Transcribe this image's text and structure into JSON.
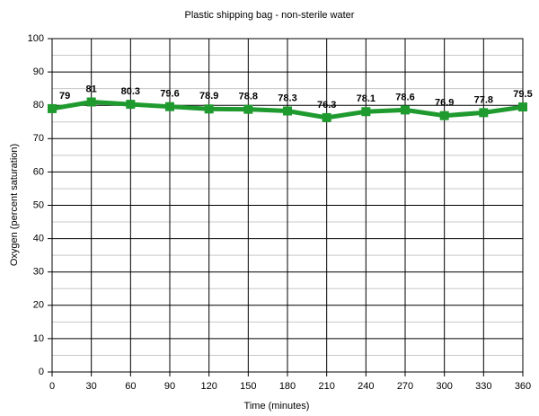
{
  "chart_data": {
    "type": "line",
    "title": "Plastic shipping bag -  non-sterile water",
    "x_label": "Time  (minutes)",
    "y_label": "Oxygen (percent saturation)",
    "x": [
      0,
      30,
      60,
      90,
      120,
      150,
      180,
      210,
      240,
      270,
      300,
      330,
      360
    ],
    "series": [
      {
        "name": "Oxygen",
        "color": "#1e9a2e",
        "values": [
          79,
          81,
          80.3,
          79.6,
          78.9,
          78.8,
          78.3,
          76.3,
          78.1,
          78.6,
          76.9,
          77.8,
          79.5
        ]
      }
    ],
    "xlim": [
      0,
      360
    ],
    "xticks": [
      0,
      30,
      60,
      90,
      120,
      150,
      180,
      210,
      240,
      270,
      300,
      330,
      360
    ],
    "ylim": [
      0,
      100
    ],
    "yticks": [
      0,
      10,
      20,
      30,
      40,
      50,
      60,
      70,
      80,
      90,
      100
    ],
    "grid": true,
    "minor_grid": true,
    "data_labels": true
  }
}
